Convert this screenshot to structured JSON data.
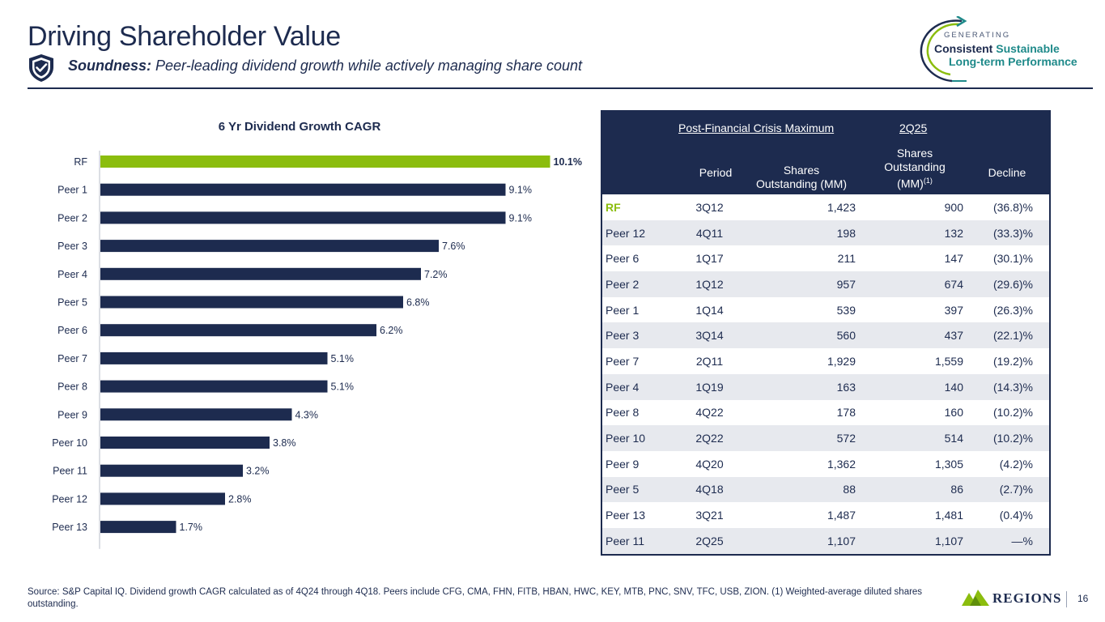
{
  "header": {
    "title": "Driving Shareholder Value",
    "subtitle_bold": "Soundness:",
    "subtitle_rest": " Peer-leading dividend growth while actively managing share count",
    "badge_small": "GENERATING",
    "badge_line1a": "Consistent",
    "badge_line1b": "Sustainable",
    "badge_line2": "Long-term Performance"
  },
  "colors": {
    "navy": "#1d2b4f",
    "rf_green": "#8bbd0e",
    "teal": "#1f8a8a"
  },
  "chart_data": {
    "type": "bar",
    "orientation": "horizontal",
    "title": "6 Yr Dividend Growth CAGR",
    "categories": [
      "RF",
      "Peer 1",
      "Peer 2",
      "Peer 3",
      "Peer 4",
      "Peer 5",
      "Peer 6",
      "Peer 7",
      "Peer 8",
      "Peer 9",
      "Peer 10",
      "Peer 11",
      "Peer 12",
      "Peer 13"
    ],
    "values": [
      10.1,
      9.1,
      9.1,
      7.6,
      7.2,
      6.8,
      6.2,
      5.1,
      5.1,
      4.3,
      3.8,
      3.2,
      2.8,
      1.7
    ],
    "labels": [
      "10.1%",
      "9.1%",
      "9.1%",
      "7.6%",
      "7.2%",
      "6.8%",
      "6.2%",
      "5.1%",
      "5.1%",
      "4.3%",
      "3.8%",
      "3.2%",
      "2.8%",
      "1.7%"
    ],
    "highlight": "RF",
    "xlim": [
      0,
      11
    ],
    "grid": false
  },
  "table": {
    "group_left": "Post-Financial Crisis Maximum",
    "group_right": "2Q25",
    "headers": [
      "Period",
      "Shares Outstanding (MM)",
      "Shares Outstanding (MM)",
      "(1)",
      "Decline"
    ],
    "rows": [
      [
        "RF",
        "3Q12",
        "1,423",
        "900",
        "(36.8)%"
      ],
      [
        "Peer 12",
        "4Q11",
        "198",
        "132",
        "(33.3)%"
      ],
      [
        "Peer 6",
        "1Q17",
        "211",
        "147",
        "(30.1)%"
      ],
      [
        "Peer 2",
        "1Q12",
        "957",
        "674",
        "(29.6)%"
      ],
      [
        "Peer 1",
        "1Q14",
        "539",
        "397",
        "(26.3)%"
      ],
      [
        "Peer 3",
        "3Q14",
        "560",
        "437",
        "(22.1)%"
      ],
      [
        "Peer 7",
        "2Q11",
        "1,929",
        "1,559",
        "(19.2)%"
      ],
      [
        "Peer 4",
        "1Q19",
        "163",
        "140",
        "(14.3)%"
      ],
      [
        "Peer 8",
        "4Q22",
        "178",
        "160",
        "(10.2)%"
      ],
      [
        "Peer 10",
        "2Q22",
        "572",
        "514",
        "(10.2)%"
      ],
      [
        "Peer 9",
        "4Q20",
        "1,362",
        "1,305",
        "(4.2)%"
      ],
      [
        "Peer 5",
        "4Q18",
        "88",
        "86",
        "(2.7)%"
      ],
      [
        "Peer 13",
        "3Q21",
        "1,487",
        "1,481",
        "(0.4)%"
      ],
      [
        "Peer 11",
        "2Q25",
        "1,107",
        "1,107",
        "—%"
      ]
    ]
  },
  "footer": {
    "source": "Source: S&P Capital IQ.  Dividend growth CAGR calculated as of 4Q24 through 4Q18. Peers include CFG, CMA, FHN, FITB, HBAN, HWC, KEY, MTB, PNC, SNV, TFC, USB, ZION. (1) Weighted-average diluted shares outstanding.",
    "logo_text": "REGIONS",
    "page_number": "16"
  }
}
